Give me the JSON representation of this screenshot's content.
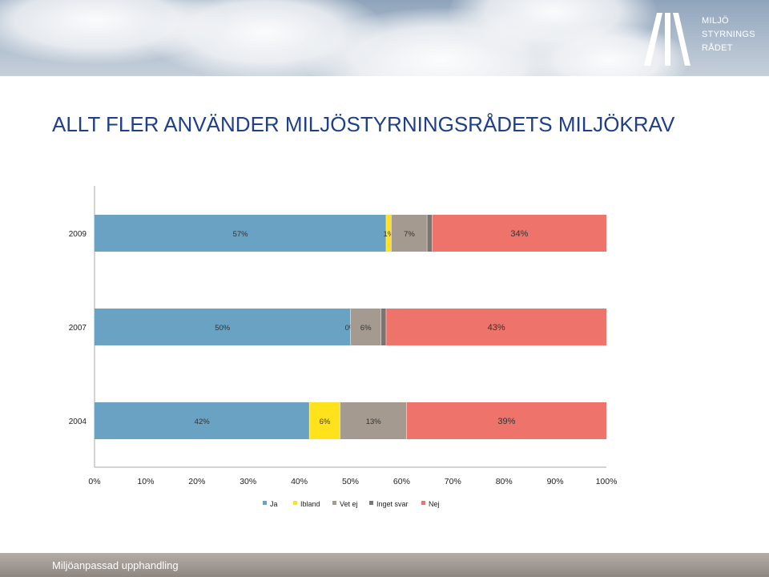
{
  "slide": {
    "title": "ALLT FLER ANVÄNDER MILJÖSTYRNINGSRÅDETS MILJÖKRAV",
    "footer": "Miljöanpassad upphandling",
    "logo_lines": [
      "MILJÖ",
      "STYRNINGS",
      "RÅDET"
    ]
  },
  "chart_data": {
    "type": "bar",
    "orientation": "horizontal",
    "stacked": "percent",
    "categories": [
      "2009",
      "2007",
      "2004"
    ],
    "series": [
      {
        "name": "Ja",
        "color": "#69a2c2",
        "values": [
          57,
          50,
          42
        ],
        "labels": [
          "57%",
          "50%",
          "42%"
        ]
      },
      {
        "name": "Ibland",
        "color": "#ffe21b",
        "values": [
          1,
          0,
          6
        ],
        "labels": [
          "1%",
          "0%",
          "6%"
        ]
      },
      {
        "name": "Vet ej",
        "color": "#a59a90",
        "values": [
          7,
          6,
          13
        ],
        "labels": [
          "7%",
          "6%",
          "13%"
        ]
      },
      {
        "name": "Inget svar",
        "color": "#7a7570",
        "values": [
          1,
          1,
          0
        ],
        "labels": [
          "",
          "",
          ""
        ]
      },
      {
        "name": "Nej",
        "color": "#ee736b",
        "values": [
          34,
          43,
          39
        ],
        "labels": [
          "34%",
          "43%",
          "39%"
        ]
      }
    ],
    "xlim": [
      0,
      100
    ],
    "xticks": [
      "0%",
      "10%",
      "20%",
      "30%",
      "40%",
      "50%",
      "60%",
      "70%",
      "80%",
      "90%",
      "100%"
    ],
    "grid": false,
    "legend": "bottom"
  }
}
